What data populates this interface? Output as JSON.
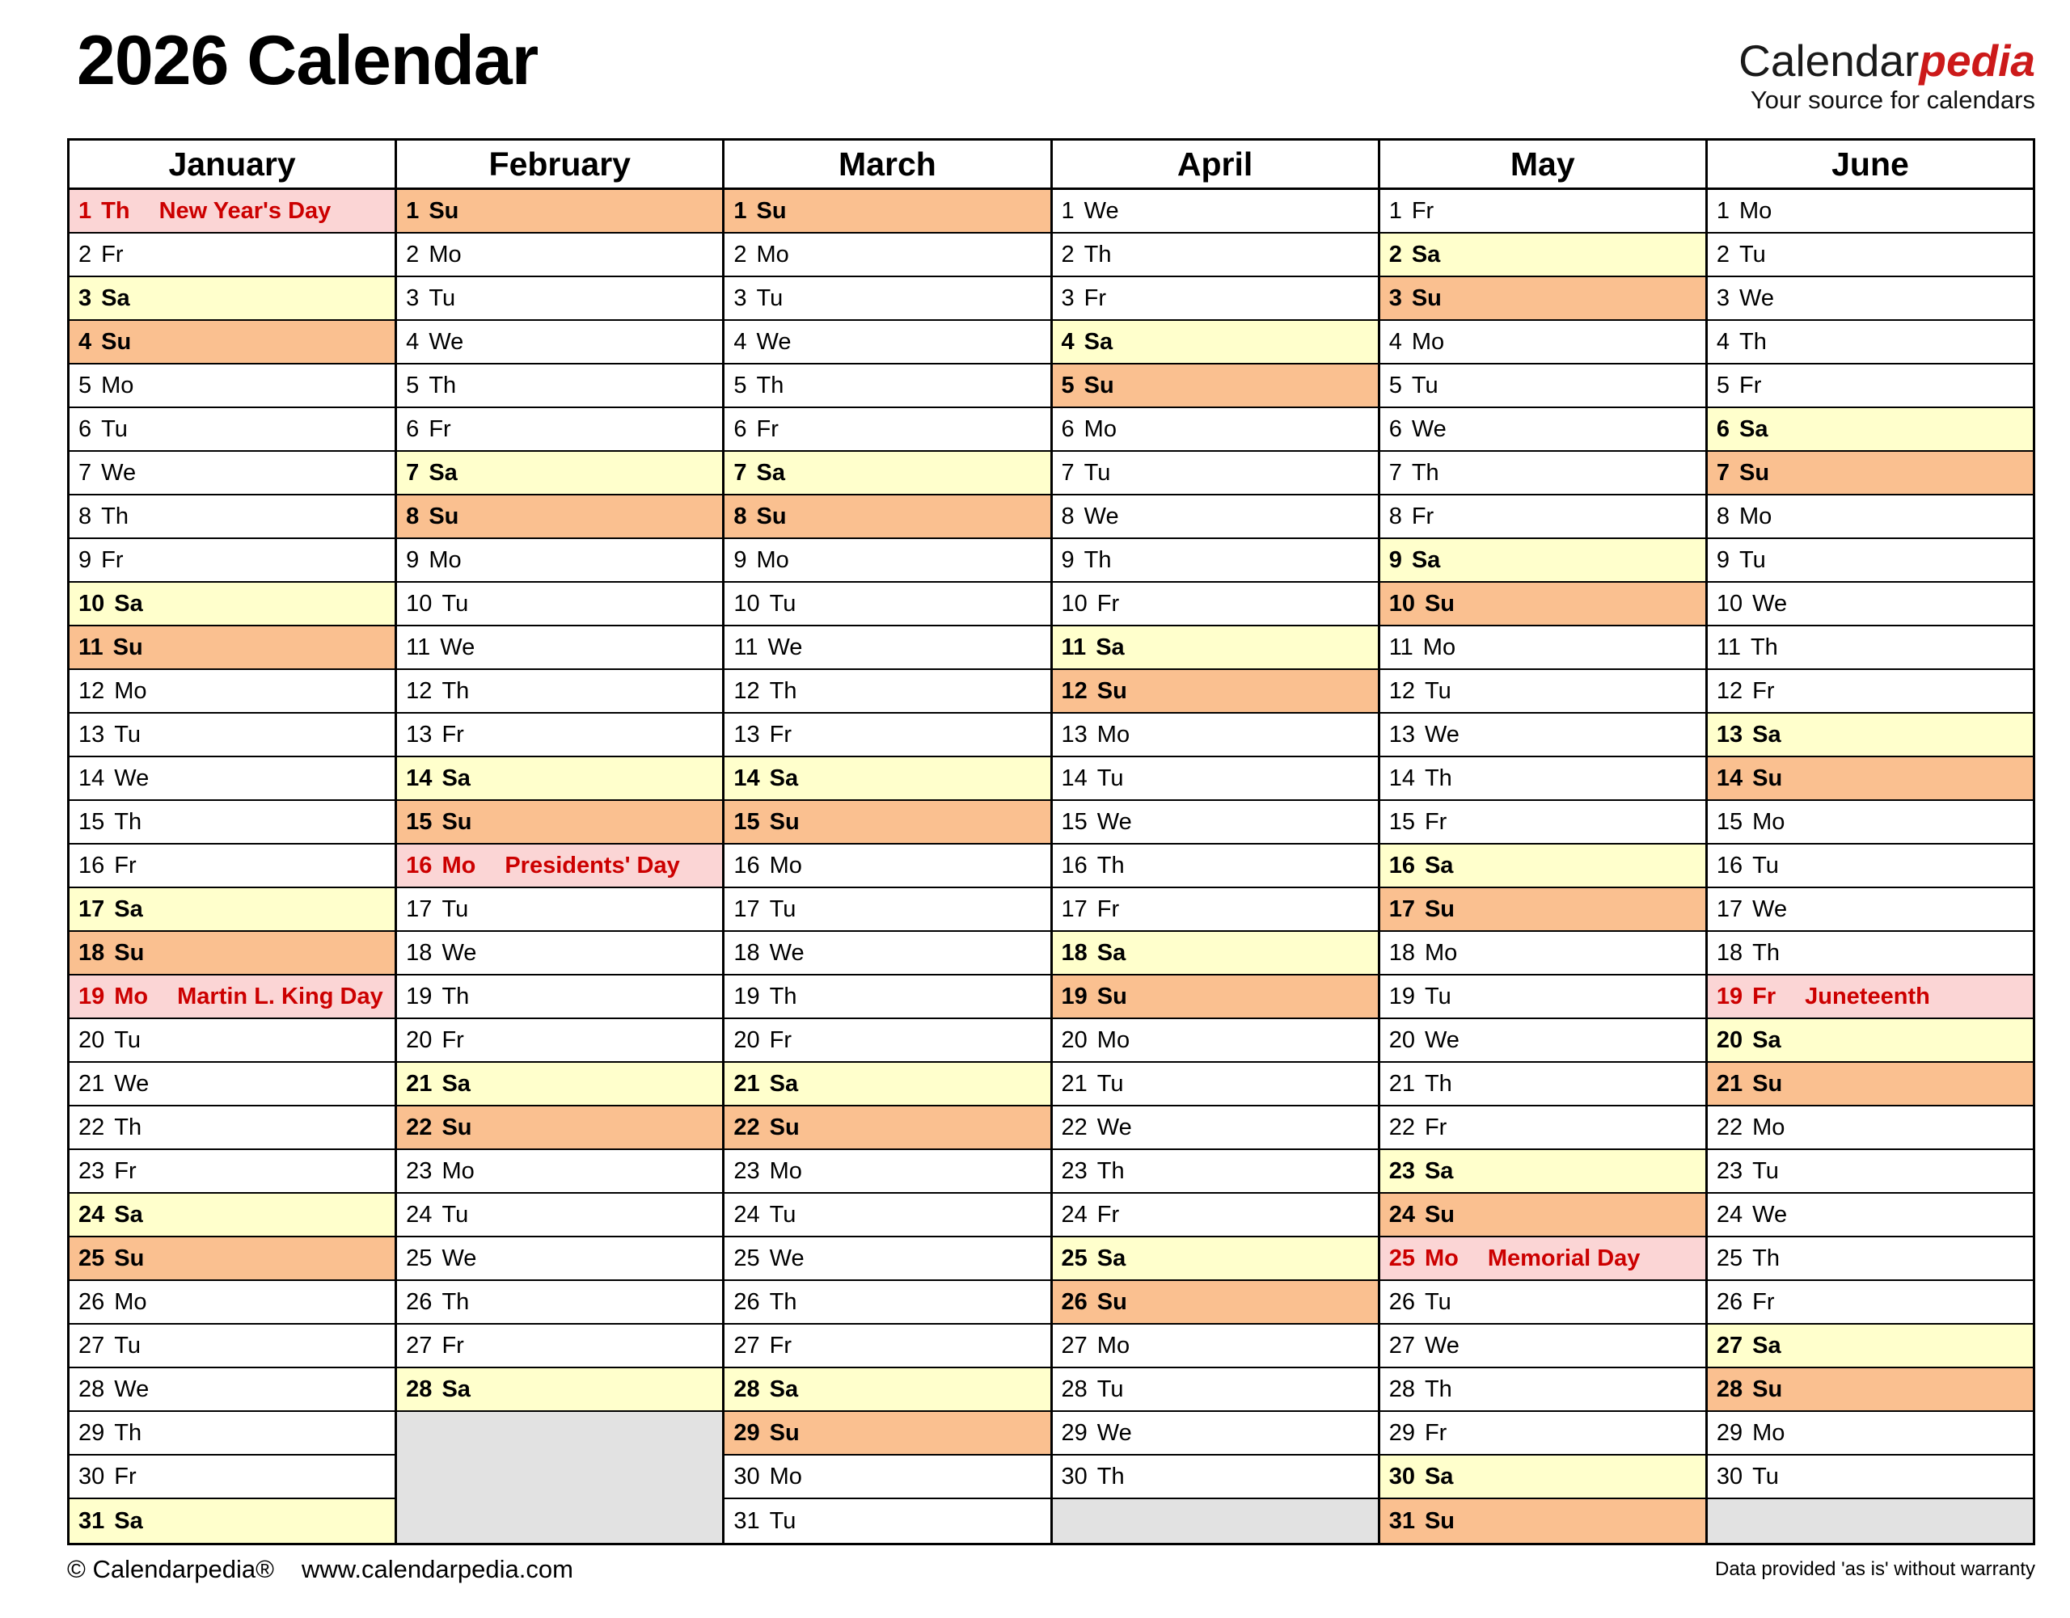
{
  "header": {
    "title": "2026 Calendar",
    "logo": {
      "black": "Calendar",
      "red": "pedia",
      "tagline": "Your source for calendars"
    }
  },
  "footer": {
    "copyright": "© Calendarpedia®",
    "website": "www.calendarpedia.com",
    "disclaimer": "Data provided 'as is' without warranty"
  },
  "colors": {
    "saturday_bg": "#FFFFCC",
    "sunday_bg": "#FAC090",
    "holiday_bg": "#FBD5D5",
    "holiday_text": "#CC0000",
    "empty_bg": "#E2E2E2",
    "border": "#000000",
    "logo_red": "#CC1A1A"
  },
  "calendar": {
    "year": 2026,
    "rows_per_month": 31,
    "months": [
      {
        "name": "January",
        "days": [
          [
            1,
            "Th",
            "New Year's Day"
          ],
          [
            2,
            "Fr"
          ],
          [
            3,
            "Sa"
          ],
          [
            4,
            "Su"
          ],
          [
            5,
            "Mo"
          ],
          [
            6,
            "Tu"
          ],
          [
            7,
            "We"
          ],
          [
            8,
            "Th"
          ],
          [
            9,
            "Fr"
          ],
          [
            10,
            "Sa"
          ],
          [
            11,
            "Su"
          ],
          [
            12,
            "Mo"
          ],
          [
            13,
            "Tu"
          ],
          [
            14,
            "We"
          ],
          [
            15,
            "Th"
          ],
          [
            16,
            "Fr"
          ],
          [
            17,
            "Sa"
          ],
          [
            18,
            "Su"
          ],
          [
            19,
            "Mo",
            "Martin L. King Day"
          ],
          [
            20,
            "Tu"
          ],
          [
            21,
            "We"
          ],
          [
            22,
            "Th"
          ],
          [
            23,
            "Fr"
          ],
          [
            24,
            "Sa"
          ],
          [
            25,
            "Su"
          ],
          [
            26,
            "Mo"
          ],
          [
            27,
            "Tu"
          ],
          [
            28,
            "We"
          ],
          [
            29,
            "Th"
          ],
          [
            30,
            "Fr"
          ],
          [
            31,
            "Sa"
          ]
        ]
      },
      {
        "name": "February",
        "days": [
          [
            1,
            "Su"
          ],
          [
            2,
            "Mo"
          ],
          [
            3,
            "Tu"
          ],
          [
            4,
            "We"
          ],
          [
            5,
            "Th"
          ],
          [
            6,
            "Fr"
          ],
          [
            7,
            "Sa"
          ],
          [
            8,
            "Su"
          ],
          [
            9,
            "Mo"
          ],
          [
            10,
            "Tu"
          ],
          [
            11,
            "We"
          ],
          [
            12,
            "Th"
          ],
          [
            13,
            "Fr"
          ],
          [
            14,
            "Sa"
          ],
          [
            15,
            "Su"
          ],
          [
            16,
            "Mo",
            "Presidents' Day"
          ],
          [
            17,
            "Tu"
          ],
          [
            18,
            "We"
          ],
          [
            19,
            "Th"
          ],
          [
            20,
            "Fr"
          ],
          [
            21,
            "Sa"
          ],
          [
            22,
            "Su"
          ],
          [
            23,
            "Mo"
          ],
          [
            24,
            "Tu"
          ],
          [
            25,
            "We"
          ],
          [
            26,
            "Th"
          ],
          [
            27,
            "Fr"
          ],
          [
            28,
            "Sa"
          ]
        ]
      },
      {
        "name": "March",
        "days": [
          [
            1,
            "Su"
          ],
          [
            2,
            "Mo"
          ],
          [
            3,
            "Tu"
          ],
          [
            4,
            "We"
          ],
          [
            5,
            "Th"
          ],
          [
            6,
            "Fr"
          ],
          [
            7,
            "Sa"
          ],
          [
            8,
            "Su"
          ],
          [
            9,
            "Mo"
          ],
          [
            10,
            "Tu"
          ],
          [
            11,
            "We"
          ],
          [
            12,
            "Th"
          ],
          [
            13,
            "Fr"
          ],
          [
            14,
            "Sa"
          ],
          [
            15,
            "Su"
          ],
          [
            16,
            "Mo"
          ],
          [
            17,
            "Tu"
          ],
          [
            18,
            "We"
          ],
          [
            19,
            "Th"
          ],
          [
            20,
            "Fr"
          ],
          [
            21,
            "Sa"
          ],
          [
            22,
            "Su"
          ],
          [
            23,
            "Mo"
          ],
          [
            24,
            "Tu"
          ],
          [
            25,
            "We"
          ],
          [
            26,
            "Th"
          ],
          [
            27,
            "Fr"
          ],
          [
            28,
            "Sa"
          ],
          [
            29,
            "Su"
          ],
          [
            30,
            "Mo"
          ],
          [
            31,
            "Tu"
          ]
        ]
      },
      {
        "name": "April",
        "days": [
          [
            1,
            "We"
          ],
          [
            2,
            "Th"
          ],
          [
            3,
            "Fr"
          ],
          [
            4,
            "Sa"
          ],
          [
            5,
            "Su"
          ],
          [
            6,
            "Mo"
          ],
          [
            7,
            "Tu"
          ],
          [
            8,
            "We"
          ],
          [
            9,
            "Th"
          ],
          [
            10,
            "Fr"
          ],
          [
            11,
            "Sa"
          ],
          [
            12,
            "Su"
          ],
          [
            13,
            "Mo"
          ],
          [
            14,
            "Tu"
          ],
          [
            15,
            "We"
          ],
          [
            16,
            "Th"
          ],
          [
            17,
            "Fr"
          ],
          [
            18,
            "Sa"
          ],
          [
            19,
            "Su"
          ],
          [
            20,
            "Mo"
          ],
          [
            21,
            "Tu"
          ],
          [
            22,
            "We"
          ],
          [
            23,
            "Th"
          ],
          [
            24,
            "Fr"
          ],
          [
            25,
            "Sa"
          ],
          [
            26,
            "Su"
          ],
          [
            27,
            "Mo"
          ],
          [
            28,
            "Tu"
          ],
          [
            29,
            "We"
          ],
          [
            30,
            "Th"
          ]
        ]
      },
      {
        "name": "May",
        "days": [
          [
            1,
            "Fr"
          ],
          [
            2,
            "Sa"
          ],
          [
            3,
            "Su"
          ],
          [
            4,
            "Mo"
          ],
          [
            5,
            "Tu"
          ],
          [
            6,
            "We"
          ],
          [
            7,
            "Th"
          ],
          [
            8,
            "Fr"
          ],
          [
            9,
            "Sa"
          ],
          [
            10,
            "Su"
          ],
          [
            11,
            "Mo"
          ],
          [
            12,
            "Tu"
          ],
          [
            13,
            "We"
          ],
          [
            14,
            "Th"
          ],
          [
            15,
            "Fr"
          ],
          [
            16,
            "Sa"
          ],
          [
            17,
            "Su"
          ],
          [
            18,
            "Mo"
          ],
          [
            19,
            "Tu"
          ],
          [
            20,
            "We"
          ],
          [
            21,
            "Th"
          ],
          [
            22,
            "Fr"
          ],
          [
            23,
            "Sa"
          ],
          [
            24,
            "Su"
          ],
          [
            25,
            "Mo",
            "Memorial Day"
          ],
          [
            26,
            "Tu"
          ],
          [
            27,
            "We"
          ],
          [
            28,
            "Th"
          ],
          [
            29,
            "Fr"
          ],
          [
            30,
            "Sa"
          ],
          [
            31,
            "Su"
          ]
        ]
      },
      {
        "name": "June",
        "days": [
          [
            1,
            "Mo"
          ],
          [
            2,
            "Tu"
          ],
          [
            3,
            "We"
          ],
          [
            4,
            "Th"
          ],
          [
            5,
            "Fr"
          ],
          [
            6,
            "Sa"
          ],
          [
            7,
            "Su"
          ],
          [
            8,
            "Mo"
          ],
          [
            9,
            "Tu"
          ],
          [
            10,
            "We"
          ],
          [
            11,
            "Th"
          ],
          [
            12,
            "Fr"
          ],
          [
            13,
            "Sa"
          ],
          [
            14,
            "Su"
          ],
          [
            15,
            "Mo"
          ],
          [
            16,
            "Tu"
          ],
          [
            17,
            "We"
          ],
          [
            18,
            "Th"
          ],
          [
            19,
            "Fr",
            "Juneteenth"
          ],
          [
            20,
            "Sa"
          ],
          [
            21,
            "Su"
          ],
          [
            22,
            "Mo"
          ],
          [
            23,
            "Tu"
          ],
          [
            24,
            "We"
          ],
          [
            25,
            "Th"
          ],
          [
            26,
            "Fr"
          ],
          [
            27,
            "Sa"
          ],
          [
            28,
            "Su"
          ],
          [
            29,
            "Mo"
          ],
          [
            30,
            "Tu"
          ]
        ]
      }
    ]
  }
}
